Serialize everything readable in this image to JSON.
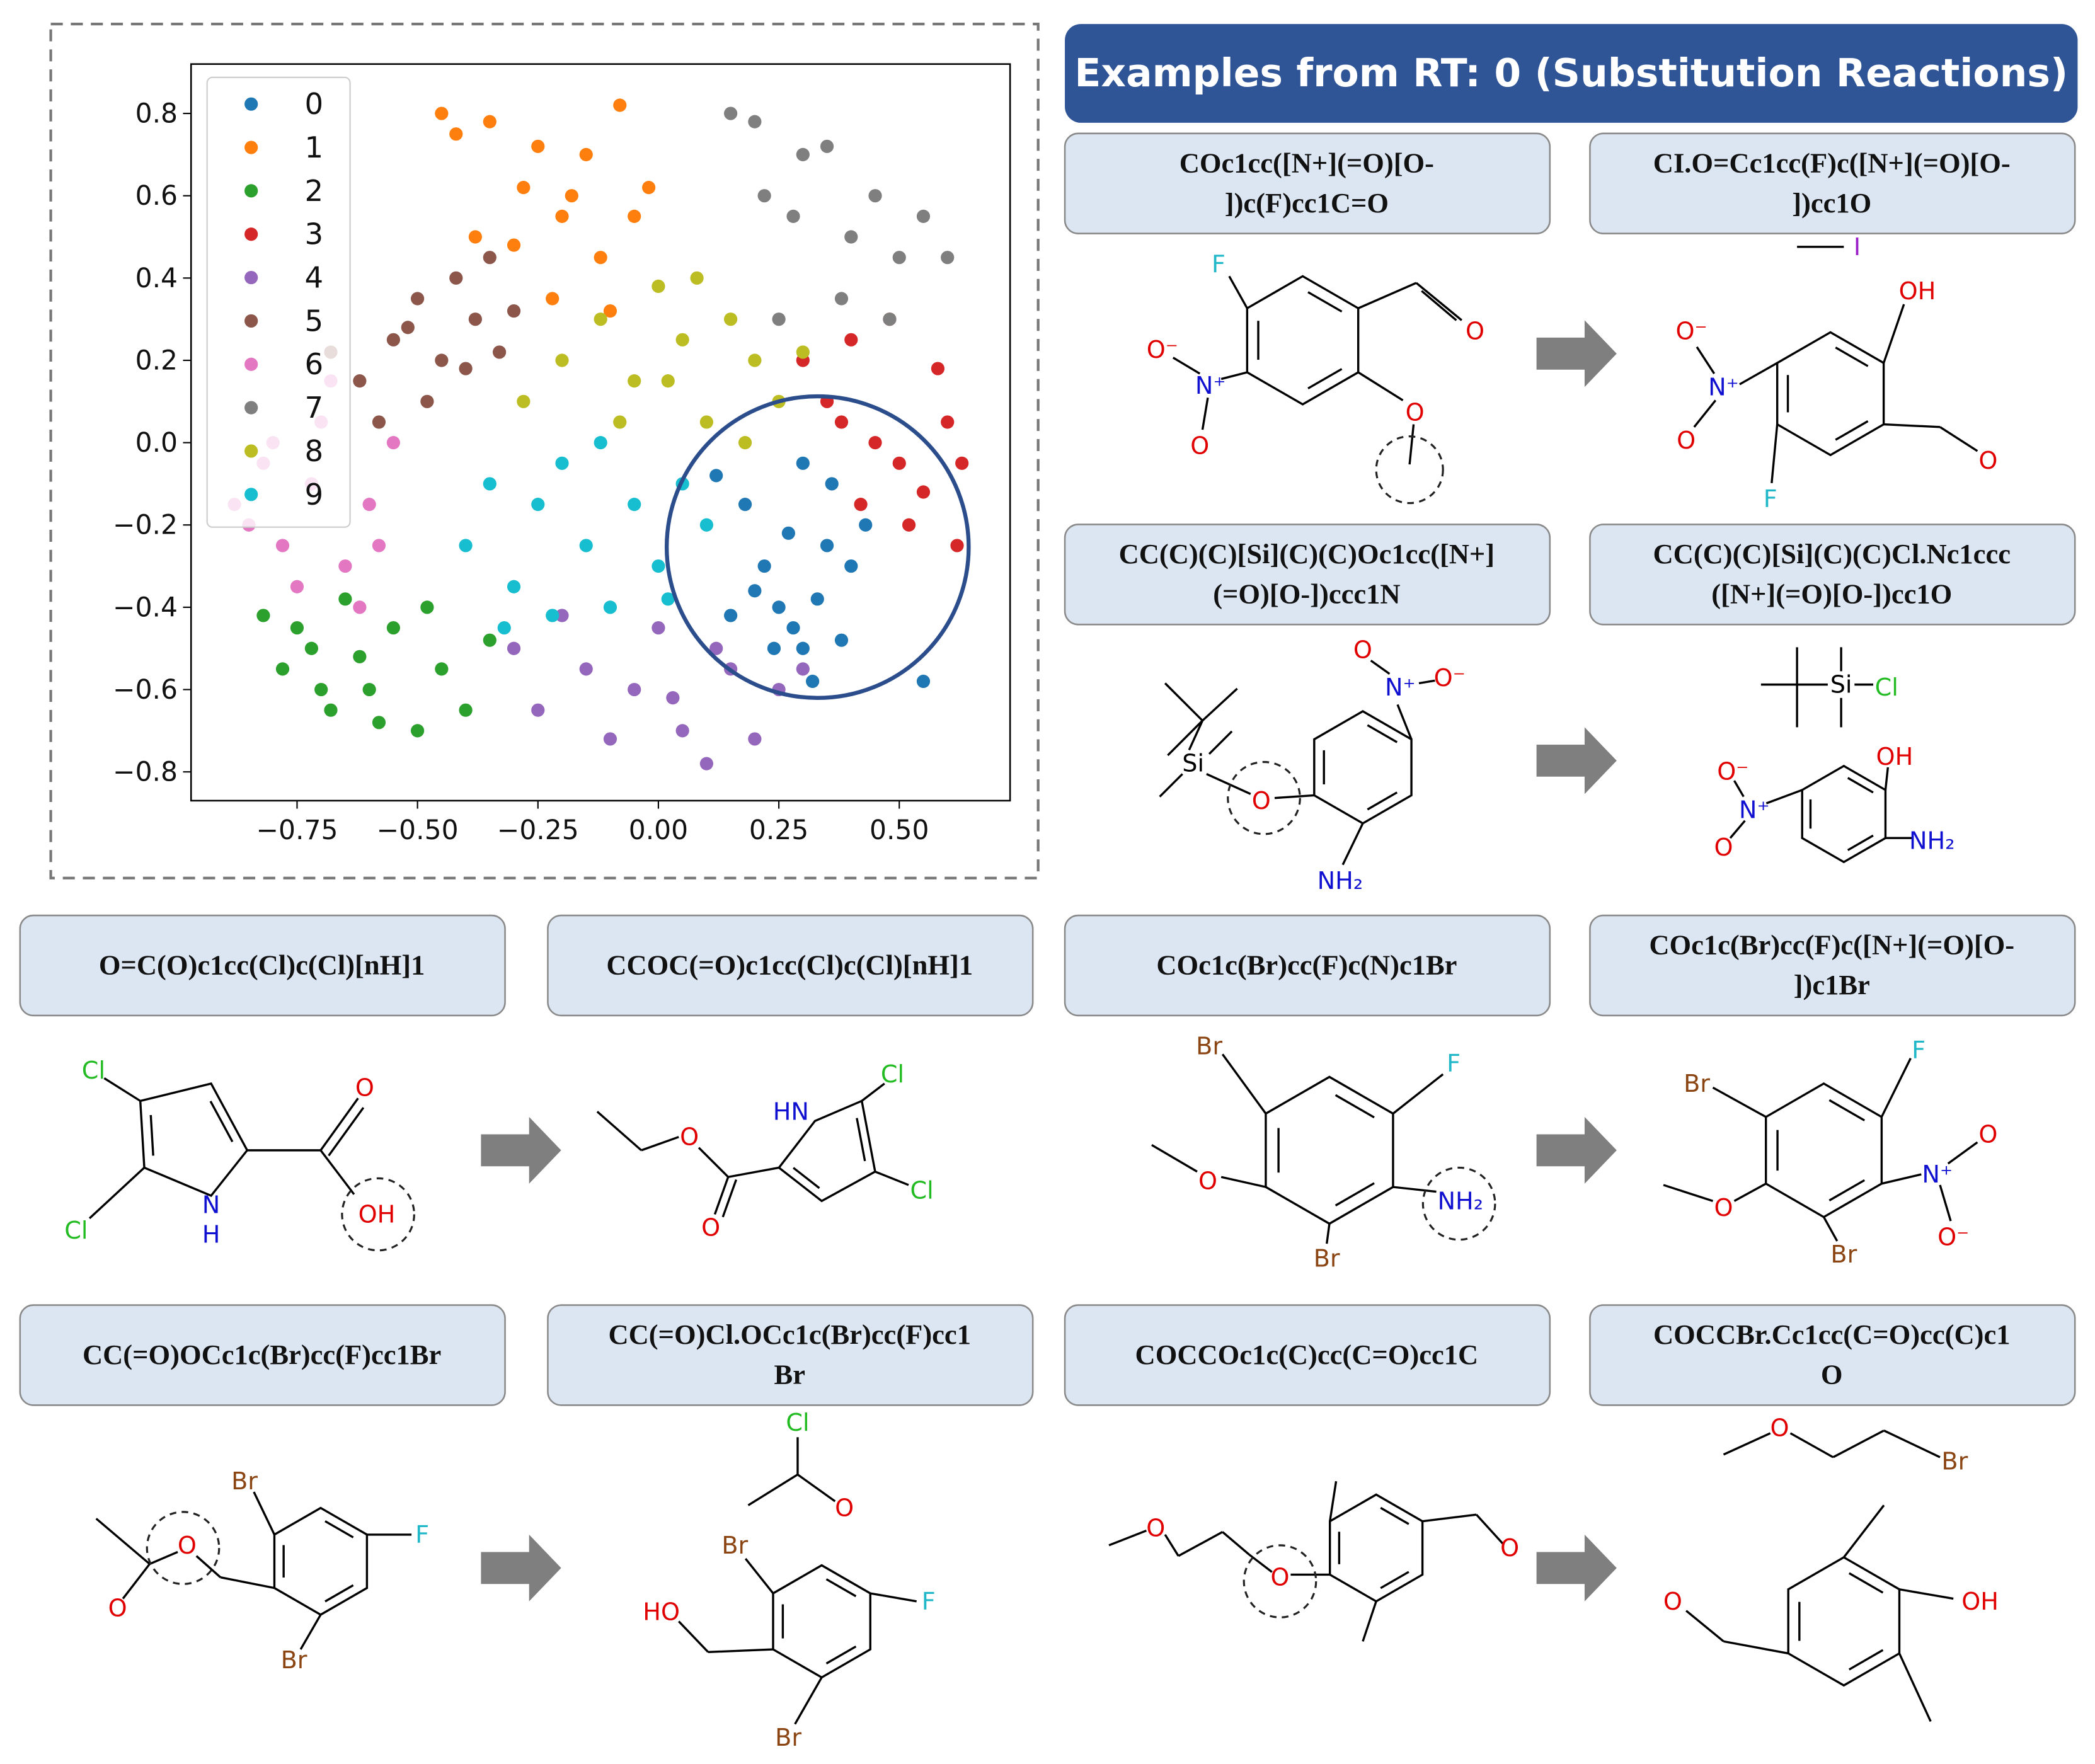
{
  "chart_data": {
    "type": "scatter",
    "xlim": [
      -0.97,
      0.73
    ],
    "ylim": [
      -0.87,
      0.92
    ],
    "xticks": [
      {
        "value": -0.75,
        "label": "−0.75"
      },
      {
        "value": -0.5,
        "label": "−0.50"
      },
      {
        "value": -0.25,
        "label": "−0.25"
      },
      {
        "value": 0,
        "label": "0.00"
      },
      0.25,
      {
        "value": 0.5,
        "label": "0.50"
      }
    ],
    "yticks": [
      {
        "value": -0.8,
        "label": "−0.8"
      },
      {
        "value": -0.6,
        "label": "−0.6"
      },
      {
        "value": -0.4,
        "label": "−0.4"
      },
      {
        "value": -0.2,
        "label": "−0.2"
      },
      {
        "value": 0,
        "label": "0.0"
      },
      0.2,
      0.4,
      0.6,
      0.8
    ],
    "legend": "upper left",
    "series": [
      {
        "name": "0",
        "color": "#1f77b4",
        "x": [
          0.12,
          0.18,
          0.22,
          0.25,
          0.28,
          0.3,
          0.33,
          0.35,
          0.38,
          0.4,
          0.27,
          0.2,
          0.32,
          0.15,
          0.43,
          0.36,
          0.24,
          0.3,
          0.55
        ],
        "values": [
          -0.08,
          -0.15,
          -0.3,
          -0.4,
          -0.45,
          -0.5,
          -0.38,
          -0.25,
          -0.48,
          -0.3,
          -0.22,
          -0.36,
          -0.58,
          -0.42,
          -0.2,
          -0.1,
          -0.5,
          -0.05,
          -0.58
        ]
      },
      {
        "name": "1",
        "color": "#ff7f0e",
        "x": [
          -0.45,
          -0.42,
          -0.35,
          -0.28,
          -0.2,
          -0.15,
          -0.08,
          -0.05,
          -0.12,
          -0.3,
          -0.38,
          -0.22,
          -0.02,
          -0.1,
          -0.18,
          -0.25
        ],
        "values": [
          0.8,
          0.75,
          0.78,
          0.62,
          0.55,
          0.7,
          0.82,
          0.55,
          0.45,
          0.48,
          0.5,
          0.35,
          0.62,
          0.32,
          0.6,
          0.72
        ]
      },
      {
        "name": "2",
        "color": "#2ca02c",
        "x": [
          -0.82,
          -0.78,
          -0.72,
          -0.68,
          -0.65,
          -0.6,
          -0.55,
          -0.5,
          -0.45,
          -0.4,
          -0.35,
          -0.7,
          -0.58,
          -0.48,
          -0.62,
          -0.75
        ],
        "values": [
          -0.42,
          -0.55,
          -0.5,
          -0.65,
          -0.38,
          -0.6,
          -0.45,
          -0.7,
          -0.55,
          -0.65,
          -0.48,
          -0.6,
          -0.68,
          -0.4,
          -0.52,
          -0.45
        ]
      },
      {
        "name": "3",
        "color": "#d62728",
        "x": [
          0.3,
          0.35,
          0.4,
          0.45,
          0.5,
          0.55,
          0.6,
          0.62,
          0.48,
          0.42,
          0.58,
          0.52,
          0.38,
          0.63
        ],
        "values": [
          0.2,
          0.1,
          0.25,
          0.0,
          -0.05,
          -0.12,
          0.05,
          -0.25,
          0.3,
          -0.15,
          0.18,
          -0.2,
          0.05,
          -0.05
        ]
      },
      {
        "name": "4",
        "color": "#9467bd",
        "x": [
          -0.3,
          -0.25,
          -0.15,
          -0.05,
          0.0,
          0.05,
          0.1,
          0.15,
          0.2,
          -0.1,
          0.25,
          0.12,
          -0.2,
          0.3,
          0.03
        ],
        "values": [
          -0.5,
          -0.65,
          -0.55,
          -0.6,
          -0.45,
          -0.7,
          -0.78,
          -0.55,
          -0.72,
          -0.72,
          -0.6,
          -0.5,
          -0.42,
          -0.55,
          -0.62
        ]
      },
      {
        "name": "5",
        "color": "#8c564b",
        "x": [
          -0.62,
          -0.55,
          -0.5,
          -0.45,
          -0.42,
          -0.38,
          -0.35,
          -0.3,
          -0.48,
          -0.58,
          -0.4,
          -0.33,
          -0.52,
          -0.68
        ],
        "values": [
          0.15,
          0.25,
          0.35,
          0.2,
          0.4,
          0.3,
          0.45,
          0.32,
          0.1,
          0.05,
          0.18,
          0.22,
          0.28,
          0.22
        ]
      },
      {
        "name": "6",
        "color": "#e377c2",
        "x": [
          -0.88,
          -0.82,
          -0.78,
          -0.72,
          -0.7,
          -0.65,
          -0.6,
          -0.55,
          -0.75,
          -0.85,
          -0.68,
          -0.58,
          -0.8,
          -0.62
        ],
        "values": [
          -0.15,
          -0.05,
          -0.25,
          -0.1,
          0.05,
          -0.3,
          -0.15,
          0.0,
          -0.35,
          -0.2,
          0.15,
          -0.25,
          0.0,
          -0.4
        ]
      },
      {
        "name": "7",
        "color": "#7f7f7f",
        "x": [
          0.15,
          0.2,
          0.22,
          0.28,
          0.3,
          0.35,
          0.4,
          0.45,
          0.5,
          0.55,
          0.6,
          0.25,
          0.38,
          0.48
        ],
        "values": [
          0.8,
          0.78,
          0.6,
          0.55,
          0.7,
          0.72,
          0.5,
          0.6,
          0.45,
          0.55,
          0.45,
          0.3,
          0.35,
          0.3
        ]
      },
      {
        "name": "8",
        "color": "#bcbd22",
        "x": [
          -0.28,
          -0.2,
          -0.12,
          -0.05,
          0.0,
          0.05,
          0.1,
          0.15,
          0.2,
          0.25,
          0.3,
          0.08,
          -0.08,
          0.18,
          0.02
        ],
        "values": [
          0.1,
          0.2,
          0.3,
          0.15,
          0.38,
          0.25,
          0.05,
          0.3,
          0.2,
          0.1,
          0.22,
          0.4,
          0.05,
          0.0,
          0.15
        ]
      },
      {
        "name": "9",
        "color": "#17becf",
        "x": [
          -0.4,
          -0.35,
          -0.3,
          -0.25,
          -0.2,
          -0.15,
          -0.1,
          -0.05,
          0.0,
          0.05,
          0.1,
          -0.22,
          -0.12,
          -0.32,
          0.02
        ],
        "values": [
          -0.25,
          -0.1,
          -0.35,
          -0.15,
          -0.05,
          -0.25,
          -0.4,
          -0.15,
          -0.3,
          -0.1,
          -0.2,
          -0.42,
          0.0,
          -0.45,
          -0.38
        ]
      }
    ]
  },
  "header": {
    "title": "Examples from RT: 0 (Substitution Reactions)"
  },
  "reactions": [
    {
      "reactant": {
        "smiles": [
          "COc1cc([N+](=O)[O-",
          "])c(F)cc1C=O"
        ],
        "atoms": [
          "F",
          "N⁺",
          "O⁻",
          "O",
          "O",
          "O"
        ]
      },
      "products": {
        "smiles": [
          "CI.O=Cc1cc(F)c([N+](=O)[O-",
          "])cc1O"
        ],
        "atoms": [
          "I",
          "OH",
          "N⁺",
          "O⁻",
          "O",
          "F",
          "O"
        ]
      }
    },
    {
      "reactant": {
        "smiles": [
          "CC(C)(C)[Si](C)(C)Oc1cc([N+]",
          "(=O)[O-])ccc1N"
        ],
        "atoms": [
          "Si",
          "O",
          "N⁺",
          "O⁻",
          "O",
          "NH₂"
        ]
      },
      "products": {
        "smiles": [
          "CC(C)(C)[Si](C)(C)Cl.Nc1ccc",
          "([N+](=O)[O-])cc1O"
        ],
        "atoms": [
          "Si",
          "Cl",
          "OH",
          "N⁺",
          "O⁻",
          "O",
          "NH₂"
        ]
      }
    },
    {
      "reactant": {
        "smiles": [
          "O=C(O)c1cc(Cl)c(Cl)[nH]1"
        ],
        "atoms": [
          "Cl",
          "Cl",
          "N",
          "H",
          "O",
          "OH"
        ]
      },
      "products": {
        "smiles": [
          "CCOC(=O)c1cc(Cl)c(Cl)[nH]1"
        ],
        "atoms": [
          "HN",
          "Cl",
          "Cl",
          "O",
          "O"
        ]
      }
    },
    {
      "reactant": {
        "smiles": [
          "COc1c(Br)cc(F)c(N)c1Br"
        ],
        "atoms": [
          "Br",
          "F",
          "O",
          "Br",
          "NH₂"
        ]
      },
      "products": {
        "smiles": [
          "COc1c(Br)cc(F)c([N+](=O)[O-",
          "])c1Br"
        ],
        "atoms": [
          "Br",
          "F",
          "O",
          "Br",
          "N⁺",
          "O",
          "O⁻"
        ]
      }
    },
    {
      "reactant": {
        "smiles": [
          "CC(=O)OCc1c(Br)cc(F)cc1Br"
        ],
        "atoms": [
          "Br",
          "F",
          "Br",
          "O",
          "O"
        ]
      },
      "products": {
        "smiles": [
          "CC(=O)Cl.OCc1c(Br)cc(F)cc1",
          "Br"
        ],
        "atoms": [
          "Cl",
          "O",
          "Br",
          "F",
          "HO",
          "Br"
        ]
      }
    },
    {
      "reactant": {
        "smiles": [
          "COCCOc1c(C)cc(C=O)cc1C"
        ],
        "atoms": [
          "O",
          "O",
          "O"
        ]
      },
      "products": {
        "smiles": [
          "COCCBr.Cc1cc(C=O)cc(C)c1",
          "O"
        ],
        "atoms": [
          "O",
          "Br",
          "OH",
          "O"
        ]
      }
    }
  ]
}
